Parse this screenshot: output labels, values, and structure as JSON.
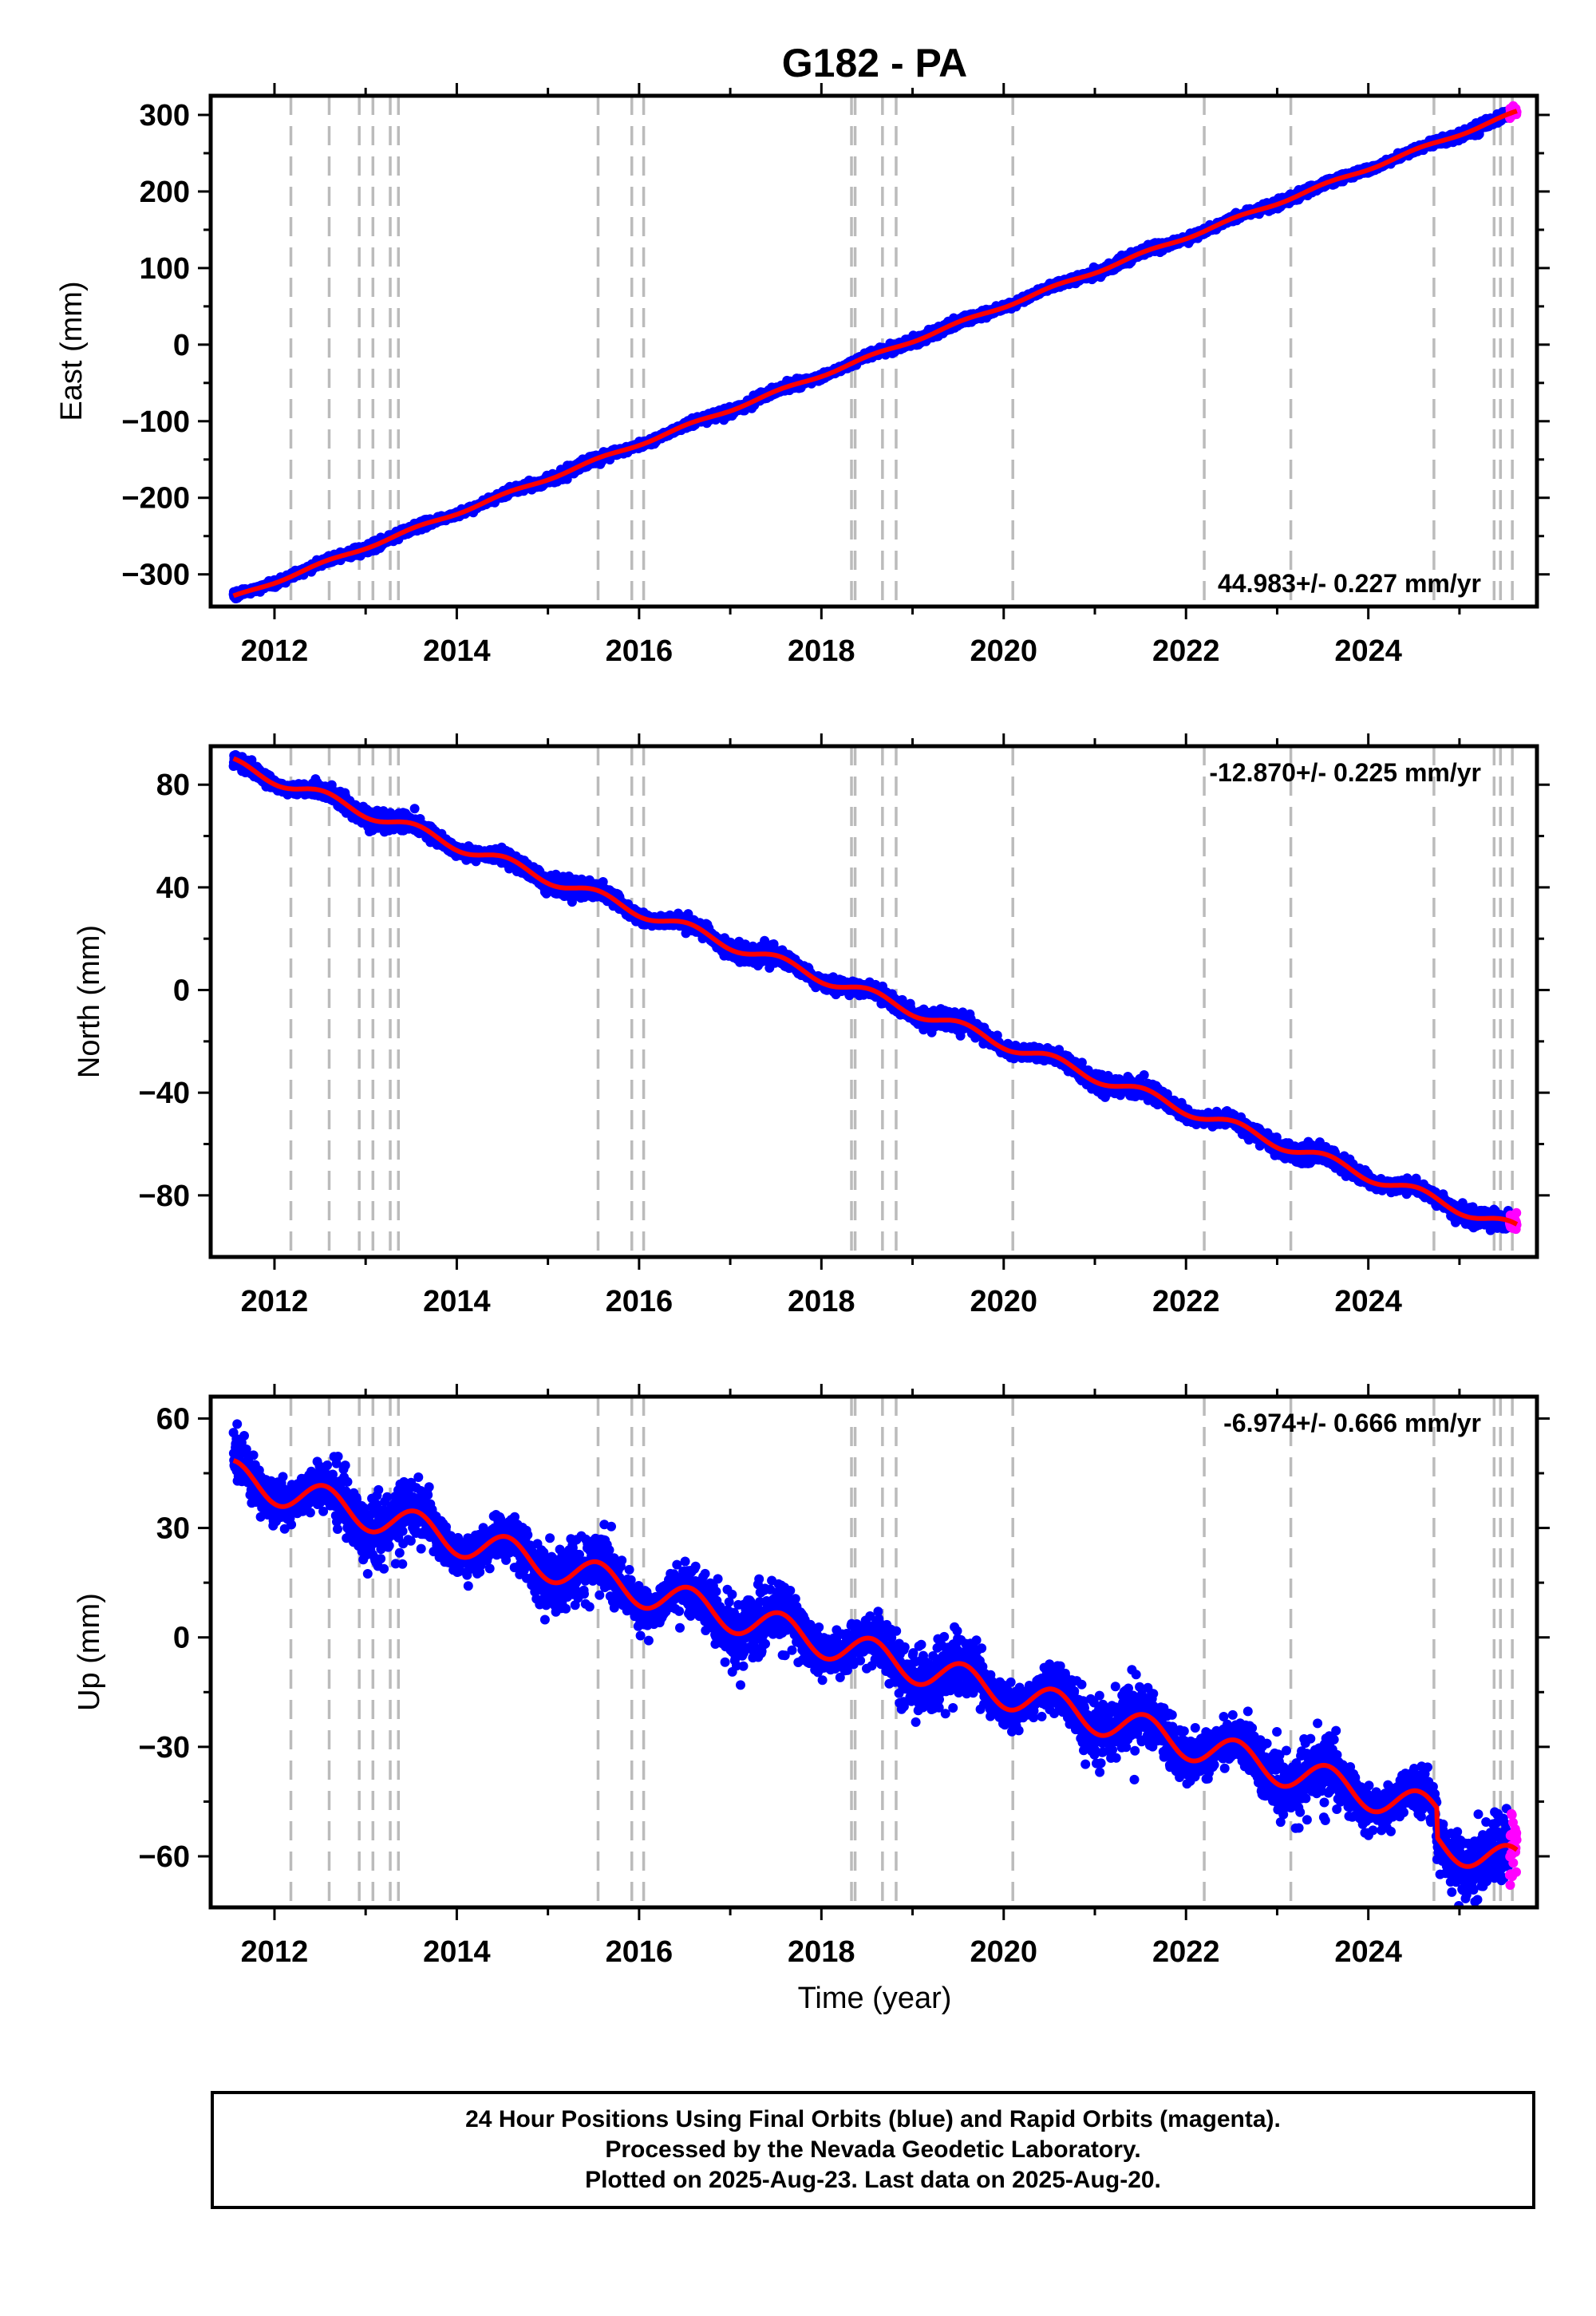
{
  "title": "G182 - PA",
  "xlabel": "Time (year)",
  "footer": {
    "lines": [
      "24 Hour Positions Using Final Orbits (blue) and Rapid Orbits (magenta).",
      "Processed by the Nevada Geodetic Laboratory.",
      "Plotted on 2025-Aug-23. Last data on 2025-Aug-20."
    ]
  },
  "colors": {
    "final_orbits": "#0000ff",
    "rapid_orbits": "#ff00ff",
    "fit": "#ff0000",
    "event_lines": "#bbbbbb"
  },
  "chart_data": [
    {
      "type": "scatter",
      "ylabel": "East (mm)",
      "velocity_label": "44.983+/- 0.227 mm/yr",
      "velocity_label_position": "bottom-right",
      "xlim": [
        2011.3,
        2025.85
      ],
      "ylim": [
        -342,
        325
      ],
      "yticks": [
        -300,
        -200,
        -100,
        0,
        100,
        200,
        300
      ],
      "xticks": [
        2012,
        2014,
        2016,
        2018,
        2020,
        2022,
        2024
      ],
      "x_start": 2011.55,
      "x_end": 2025.63,
      "fit_start": -330,
      "rate_mm_per_yr": 44.983,
      "annual_amplitude": 2,
      "noise": 2.5,
      "rapid_start": 2025.55,
      "event_lines": [
        2012.18,
        2012.6,
        2012.93,
        2013.08,
        2013.27,
        2013.36,
        2015.55,
        2015.92,
        2016.05,
        2018.33,
        2018.37,
        2018.67,
        2018.82,
        2020.1,
        2022.2,
        2023.15,
        2024.72,
        2025.38,
        2025.45,
        2025.58
      ]
    },
    {
      "type": "scatter",
      "ylabel": "North (mm)",
      "velocity_label": "-12.870+/- 0.225 mm/yr",
      "velocity_label_position": "top-right",
      "xlim": [
        2011.3,
        2025.85
      ],
      "ylim": [
        -104,
        95
      ],
      "yticks": [
        -80,
        -40,
        0,
        40,
        80
      ],
      "xticks": [
        2012,
        2014,
        2016,
        2018,
        2020,
        2022,
        2024
      ],
      "x_start": 2011.55,
      "x_end": 2025.63,
      "fit_start": 88,
      "rate_mm_per_yr": -12.87,
      "annual_amplitude": 2.2,
      "noise": 1.4,
      "rapid_start": 2025.55,
      "event_lines": [
        2012.18,
        2012.6,
        2012.93,
        2013.08,
        2013.27,
        2013.36,
        2015.55,
        2015.92,
        2016.05,
        2018.33,
        2018.37,
        2018.67,
        2018.82,
        2020.1,
        2022.2,
        2023.15,
        2024.72,
        2025.38,
        2025.45,
        2025.58
      ]
    },
    {
      "type": "scatter",
      "ylabel": "Up (mm)",
      "velocity_label": "-6.974+/- 0.666 mm/yr",
      "velocity_label_position": "top-right",
      "xlim": [
        2011.3,
        2025.85
      ],
      "ylim": [
        -74,
        66
      ],
      "yticks": [
        -60,
        -30,
        0,
        30,
        60
      ],
      "xticks": [
        2012,
        2014,
        2016,
        2018,
        2020,
        2022,
        2024
      ],
      "x_start": 2011.55,
      "x_end": 2025.63,
      "fit_start": 44,
      "rate_mm_per_yr": -6.974,
      "annual_amplitude": 4.5,
      "noise": 3.6,
      "rapid_start": 2025.55,
      "late_offset_start": 2024.75,
      "late_offset": -8,
      "event_lines": [
        2012.18,
        2012.6,
        2012.93,
        2013.08,
        2013.27,
        2013.36,
        2015.55,
        2015.92,
        2016.05,
        2018.33,
        2018.37,
        2018.67,
        2018.82,
        2020.1,
        2022.2,
        2023.15,
        2024.72,
        2025.38,
        2025.45,
        2025.58
      ]
    }
  ]
}
